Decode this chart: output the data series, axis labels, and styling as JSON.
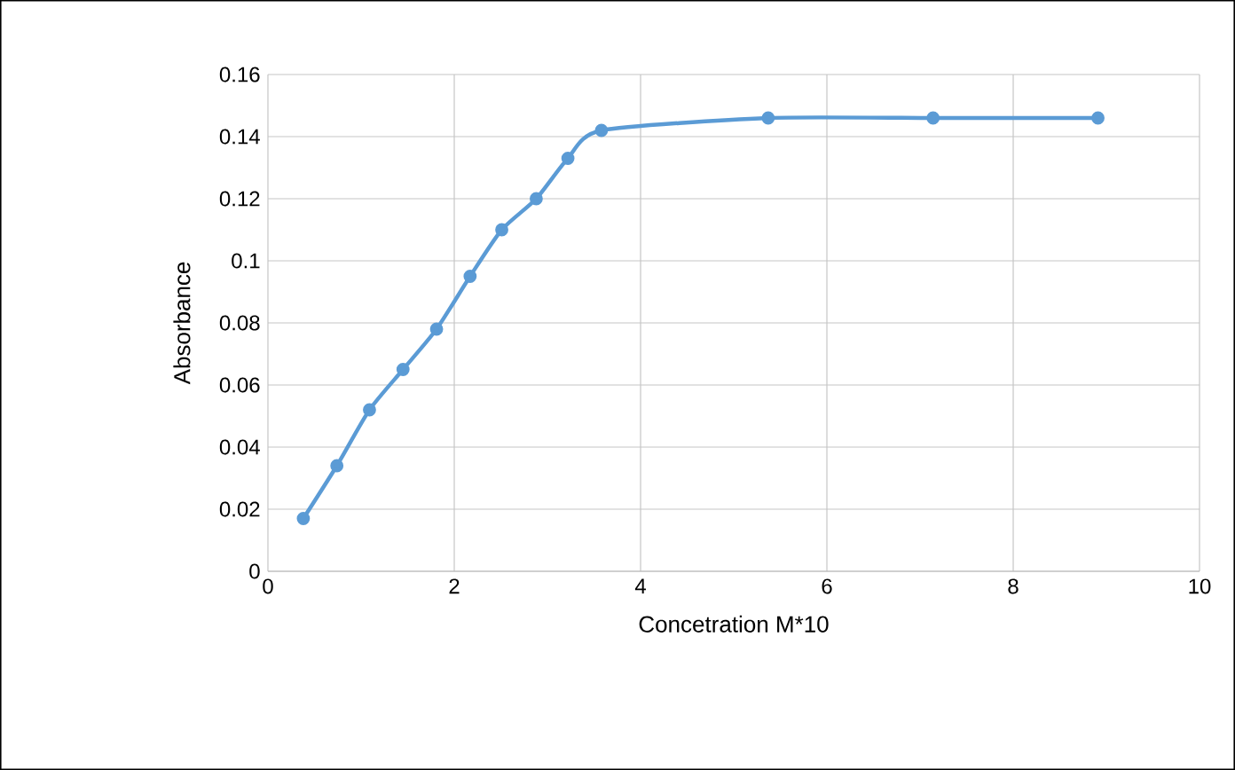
{
  "chart_data": {
    "type": "line",
    "xlabel": "Concetration  M*10",
    "ylabel": "Absorbance",
    "x": [
      0.38,
      0.74,
      1.09,
      1.45,
      1.81,
      2.17,
      2.51,
      2.88,
      3.22,
      3.58,
      5.37,
      7.14,
      8.91
    ],
    "series": [
      {
        "color": "#5b9bd5",
        "values": [
          0.017,
          0.034,
          0.052,
          0.065,
          0.078,
          0.095,
          0.11,
          0.12,
          0.133,
          0.142,
          0.146,
          0.146,
          0.146
        ]
      }
    ],
    "xlim": [
      0,
      10
    ],
    "xticks": [
      0,
      2,
      4,
      6,
      8,
      10
    ],
    "ylim": [
      0,
      0.16
    ],
    "yticks": [
      {
        "value": 0,
        "label": "0"
      },
      {
        "value": 0.02,
        "label": "0.02"
      },
      {
        "value": 0.04,
        "label": "0.04"
      },
      {
        "value": 0.06,
        "label": "0.06"
      },
      {
        "value": 0.08,
        "label": "0.08"
      },
      {
        "value": 0.1,
        "label": "0.1"
      },
      {
        "value": 0.12,
        "label": "0.12"
      },
      {
        "value": 0.14,
        "label": "0.14"
      },
      {
        "value": 0.16,
        "label": "0.16"
      }
    ],
    "grid": true,
    "marker": "circle",
    "line_style": "solid"
  }
}
